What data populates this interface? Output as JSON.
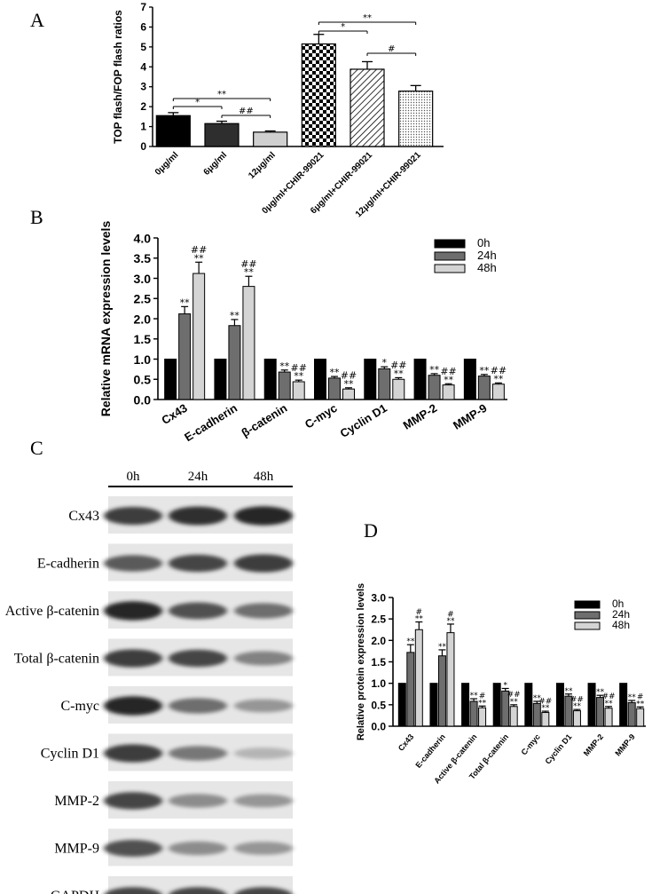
{
  "panel_labels": {
    "a": "A",
    "b": "B",
    "c": "C",
    "d": "D"
  },
  "chart_data": [
    {
      "panel": "A",
      "type": "bar",
      "ylabel": "TOP flash/FOP flash ratios",
      "ylim": [
        0,
        7
      ],
      "yticks": [
        "0",
        "1",
        "2",
        "3",
        "4",
        "5",
        "6",
        "7"
      ],
      "categories": [
        "0μg/ml",
        "6μg/ml",
        "12μg/ml",
        "0μg/ml+CHIR-99021",
        "6μg/ml+CHIR-99021",
        "12μg/ml+CHIR-99021"
      ],
      "values": [
        1.55,
        1.15,
        0.72,
        5.15,
        3.88,
        2.78
      ],
      "errors": [
        0.15,
        0.12,
        0.06,
        0.48,
        0.38,
        0.28
      ],
      "brackets": [
        {
          "from": 0,
          "to": 2,
          "label": "**"
        },
        {
          "from": 0,
          "to": 1,
          "label": "*"
        },
        {
          "from": 1,
          "to": 2,
          "label": "##"
        },
        {
          "from": 3,
          "to": 5,
          "label": "**"
        },
        {
          "from": 3,
          "to": 4,
          "label": "*"
        },
        {
          "from": 4,
          "to": 5,
          "label": "#"
        }
      ]
    },
    {
      "panel": "B",
      "type": "bar",
      "ylabel": "Relative mRNA expression levels",
      "ylim": [
        0,
        4
      ],
      "yticks": [
        "0.0",
        "0.5",
        "1.0",
        "1.5",
        "2.0",
        "2.5",
        "3.0",
        "3.5",
        "4.0"
      ],
      "categories": [
        "Cx43",
        "E-cadherin",
        "β-catenin",
        "C-myc",
        "Cyclin D1",
        "MMP-2",
        "MMP-9"
      ],
      "series": [
        {
          "name": "0h",
          "values": [
            1,
            1,
            1,
            1,
            1,
            1,
            1
          ],
          "errors": [
            0,
            0,
            0,
            0,
            0,
            0,
            0
          ],
          "marks": [
            "",
            "",
            "",
            "",
            "",
            "",
            ""
          ]
        },
        {
          "name": "24h",
          "values": [
            2.12,
            1.83,
            0.68,
            0.53,
            0.76,
            0.6,
            0.58
          ],
          "errors": [
            0.18,
            0.15,
            0.05,
            0.04,
            0.05,
            0.04,
            0.04
          ],
          "marks": [
            "**",
            "**",
            "**",
            "**",
            "*",
            "**",
            "**"
          ]
        },
        {
          "name": "48h",
          "values": [
            3.12,
            2.8,
            0.44,
            0.26,
            0.5,
            0.36,
            0.38
          ],
          "errors": [
            0.28,
            0.25,
            0.04,
            0.03,
            0.04,
            0.03,
            0.03
          ],
          "marks": [
            "##\n**",
            "##\n**",
            "##\n**",
            "##\n**",
            "##\n**",
            "##\n**",
            "##\n**"
          ]
        }
      ]
    },
    {
      "panel": "D",
      "type": "bar",
      "ylabel": "Relative protein expression levels",
      "ylim": [
        0,
        3
      ],
      "yticks": [
        "0.0",
        "0.5",
        "1.0",
        "1.5",
        "2.0",
        "2.5",
        "3.0"
      ],
      "categories": [
        "Cx43",
        "E-cadherin",
        "Active β-catenin",
        "Total β-catenin",
        "C-myc",
        "Cyclin D1",
        "MMP-2",
        "MMP-9"
      ],
      "series": [
        {
          "name": "0h",
          "values": [
            1,
            1,
            1,
            1,
            1,
            1,
            1,
            1
          ],
          "errors": [
            0,
            0,
            0,
            0,
            0,
            0,
            0,
            0
          ],
          "marks": [
            "",
            "",
            "",
            "",
            "",
            "",
            "",
            ""
          ]
        },
        {
          "name": "24h",
          "values": [
            1.72,
            1.64,
            0.58,
            0.82,
            0.53,
            0.7,
            0.67,
            0.55
          ],
          "errors": [
            0.18,
            0.14,
            0.06,
            0.06,
            0.05,
            0.05,
            0.05,
            0.05
          ],
          "marks": [
            "**",
            "**",
            "**",
            "*",
            "**",
            "**",
            "**",
            "**"
          ]
        },
        {
          "name": "48h",
          "values": [
            2.25,
            2.18,
            0.43,
            0.46,
            0.32,
            0.36,
            0.42,
            0.41
          ],
          "errors": [
            0.18,
            0.2,
            0.04,
            0.04,
            0.03,
            0.03,
            0.04,
            0.04
          ],
          "marks": [
            "#\n**",
            "#\n**",
            "#\n**",
            "##\n**",
            "##\n**",
            "##\n**",
            "##\n**",
            "#\n**"
          ]
        }
      ]
    }
  ],
  "western_blot": {
    "timepoints": [
      "0h",
      "24h",
      "48h"
    ],
    "proteins": [
      {
        "name": "Cx43",
        "intensity": [
          0.85,
          0.92,
          0.95
        ]
      },
      {
        "name": "E-cadherin",
        "intensity": [
          0.7,
          0.8,
          0.85
        ]
      },
      {
        "name": "Active β-catenin",
        "intensity": [
          0.95,
          0.75,
          0.6
        ]
      },
      {
        "name": "Total  β-catenin",
        "intensity": [
          0.85,
          0.8,
          0.5
        ]
      },
      {
        "name": "C-myc",
        "intensity": [
          0.95,
          0.6,
          0.4
        ]
      },
      {
        "name": "Cyclin D1",
        "intensity": [
          0.85,
          0.55,
          0.25
        ]
      },
      {
        "name": "MMP-2",
        "intensity": [
          0.8,
          0.45,
          0.4
        ]
      },
      {
        "name": "MMP-9",
        "intensity": [
          0.75,
          0.45,
          0.4
        ]
      },
      {
        "name": "GAPDH",
        "intensity": [
          0.8,
          0.8,
          0.8
        ]
      }
    ]
  }
}
